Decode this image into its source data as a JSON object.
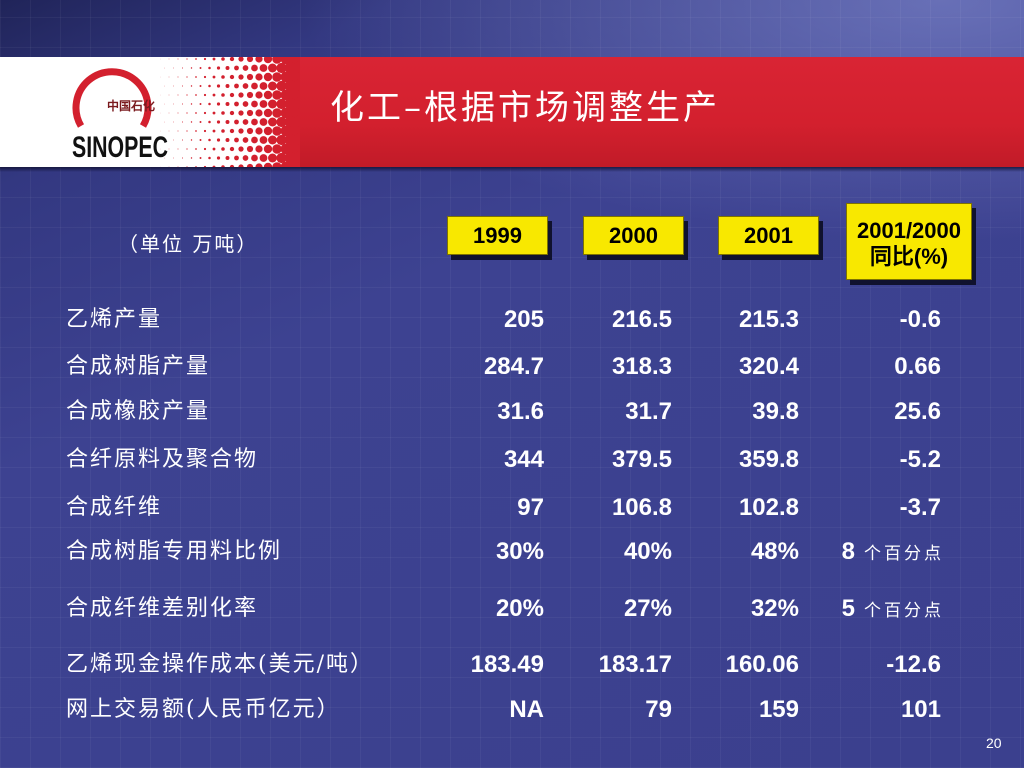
{
  "slide": {
    "title": "化工–根据市场调整生产",
    "unit_label": "（单位 万吨）",
    "page_number": "20"
  },
  "logo": {
    "chinese": "中国石化",
    "english": "SINOPEC"
  },
  "table": {
    "headers": {
      "y1999": "1999",
      "y2000": "2000",
      "y2001": "2001",
      "change_line1": "2001/2000",
      "change_line2": "同比(%)"
    },
    "rows": [
      {
        "label": "乙烯产量",
        "values": [
          "205",
          "216.5",
          "215.3"
        ],
        "change": "-0.6"
      },
      {
        "label": "合成树脂产量",
        "values": [
          "284.7",
          "318.3",
          "320.4"
        ],
        "change": "0.66"
      },
      {
        "label": "合成橡胶产量",
        "values": [
          "31.6",
          "31.7",
          "39.8"
        ],
        "change": "25.6"
      },
      {
        "label": "合纤原料及聚合物",
        "values": [
          "344",
          "379.5",
          "359.8"
        ],
        "change": "-5.2"
      },
      {
        "label": "合成纤维",
        "values": [
          "97",
          "106.8",
          "102.8"
        ],
        "change": "-3.7"
      },
      {
        "label": "合成树脂专用料比例",
        "values": [
          "30%",
          "40%",
          "48%"
        ],
        "change": "8",
        "change_unit": "个百分点"
      },
      {
        "label": "合成纤维差别化率",
        "values": [
          "20%",
          "27%",
          "32%"
        ],
        "change": "5",
        "change_unit": "个百分点"
      },
      {
        "label": "乙烯现金操作成本(美元/吨）",
        "values": [
          "183.49",
          "183.17",
          "160.06"
        ],
        "change": "-12.6"
      },
      {
        "label": "网上交易额(人民币亿元）",
        "values": [
          "NA",
          "79",
          "159"
        ],
        "change": "101"
      }
    ]
  },
  "colors": {
    "background": "#3d4291",
    "banner_red": "#d3202e",
    "header_yellow": "#f8e800",
    "text": "#ffffff"
  }
}
